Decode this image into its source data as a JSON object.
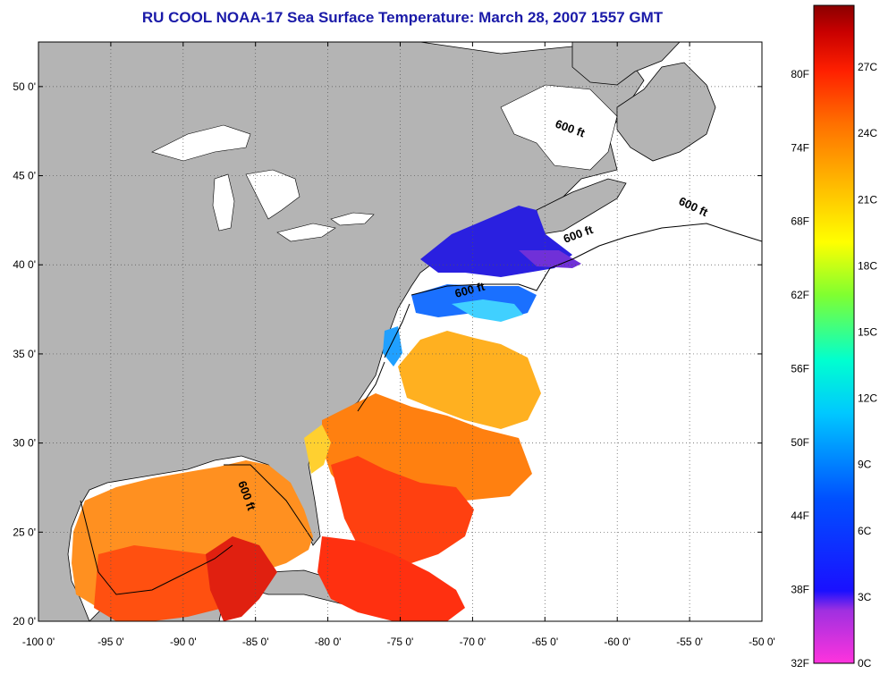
{
  "title": "RU COOL  NOAA-17  Sea Surface Temperature:  March 28, 2007 1557 GMT",
  "map": {
    "lon_range": [
      -100,
      -50
    ],
    "lat_range": [
      20,
      52.5
    ],
    "lon_ticks": [
      {
        "value": -100,
        "label": "-100 0'"
      },
      {
        "value": -95,
        "label": "-95 0'"
      },
      {
        "value": -90,
        "label": "-90 0'"
      },
      {
        "value": -85,
        "label": "-85 0'"
      },
      {
        "value": -80,
        "label": "-80 0'"
      },
      {
        "value": -75,
        "label": "-75 0'"
      },
      {
        "value": -70,
        "label": "-70 0'"
      },
      {
        "value": -65,
        "label": "-65 0'"
      },
      {
        "value": -60,
        "label": "-60 0'"
      },
      {
        "value": -55,
        "label": "-55 0'"
      },
      {
        "value": -50,
        "label": "-50 0'"
      }
    ],
    "lat_ticks": [
      {
        "value": 20,
        "label": "20 0'"
      },
      {
        "value": 25,
        "label": "25 0'"
      },
      {
        "value": 30,
        "label": "30 0'"
      },
      {
        "value": 35,
        "label": "35 0'"
      },
      {
        "value": 40,
        "label": "40 0'"
      },
      {
        "value": 45,
        "label": "45 0'"
      },
      {
        "value": 50,
        "label": "50 0'"
      }
    ],
    "land_color": "#b4b4b4",
    "contour_label": "600 ft"
  },
  "colorbar": {
    "fahrenheit_labels": [
      "32F",
      "38F",
      "44F",
      "50F",
      "56F",
      "62F",
      "68F",
      "74F",
      "80F"
    ],
    "celsius_labels": [
      "0C",
      "3C",
      "6C",
      "9C",
      "12C",
      "15C",
      "18C",
      "21C",
      "24C",
      "27C"
    ],
    "colors": [
      "#ff33dd",
      "#a030e0",
      "#1a10ff",
      "#0050ff",
      "#00c8ff",
      "#00ffd0",
      "#80ff30",
      "#ffff00",
      "#ffc000",
      "#ff7000",
      "#ff2000",
      "#c80000",
      "#8a0000"
    ]
  }
}
